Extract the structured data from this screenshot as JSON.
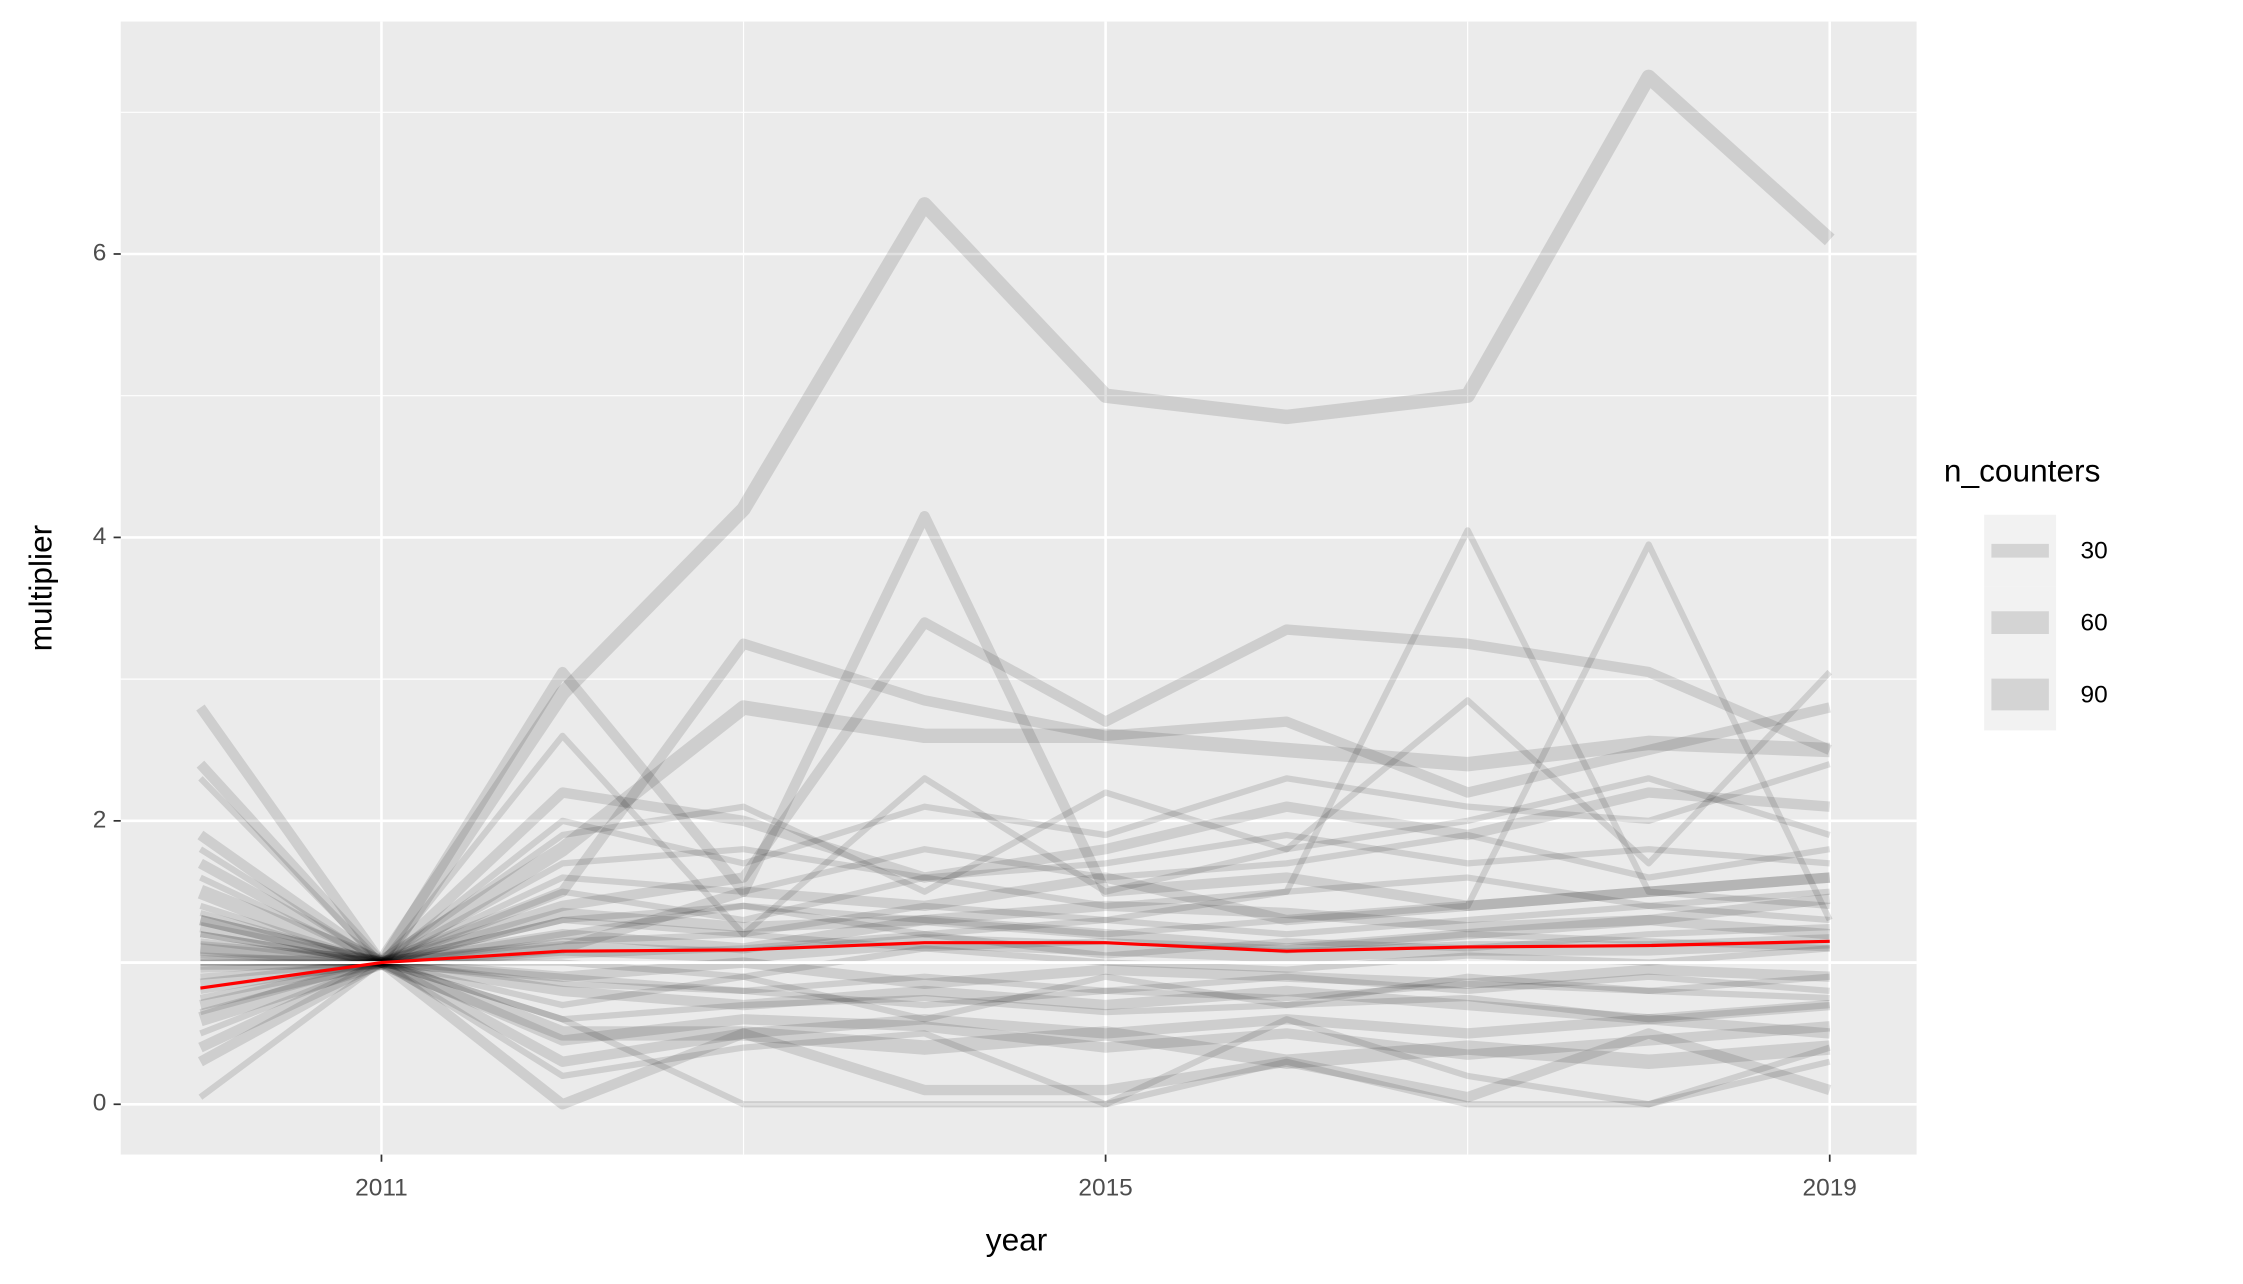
{
  "chart_data": {
    "type": "line",
    "x_label": "year",
    "y_label": "multiplier",
    "x": [
      2010,
      2011,
      2012,
      2013,
      2014,
      2015,
      2016,
      2017,
      2018,
      2019
    ],
    "xlim": [
      2009.56,
      2019.48
    ],
    "ylim": [
      -0.355,
      7.64
    ],
    "xticks": [
      2011,
      2015,
      2019
    ],
    "yticks": [
      0,
      2,
      4,
      6
    ],
    "xminor": [
      2013,
      2017
    ],
    "yminor": [
      1,
      3,
      5,
      7
    ],
    "grid": true,
    "line_color": "#000000",
    "line_alpha": 0.12,
    "series": [
      {
        "size": 90,
        "values": [
          1.1,
          1.0,
          2.9,
          4.2,
          6.35,
          5.0,
          4.85,
          5.0,
          7.25,
          6.1
        ]
      },
      {
        "size": 60,
        "values": [
          2.8,
          1.0,
          3.05,
          1.5,
          4.15,
          1.5,
          1.6,
          1.4,
          1.5,
          1.6
        ]
      },
      {
        "size": 60,
        "values": [
          1.3,
          1.0,
          1.4,
          1.6,
          3.4,
          2.7,
          3.35,
          3.25,
          3.05,
          2.5
        ]
      },
      {
        "size": 30,
        "values": [
          1.2,
          1.0,
          1.3,
          1.2,
          1.4,
          1.3,
          1.5,
          4.05,
          1.5,
          1.4
        ]
      },
      {
        "size": 30,
        "values": [
          1.0,
          1.0,
          1.2,
          1.4,
          1.3,
          1.2,
          1.3,
          1.4,
          3.95,
          1.3
        ]
      },
      {
        "size": 60,
        "values": [
          2.4,
          1.0,
          1.5,
          3.25,
          2.85,
          2.6,
          2.7,
          2.2,
          2.5,
          2.8
        ]
      },
      {
        "size": 90,
        "values": [
          1.5,
          1.0,
          1.8,
          2.8,
          2.6,
          2.6,
          2.5,
          2.4,
          2.55,
          2.5
        ]
      },
      {
        "size": 30,
        "values": [
          2.3,
          1.0,
          2.6,
          1.2,
          2.3,
          1.5,
          1.8,
          2.85,
          1.7,
          3.05
        ]
      },
      {
        "size": 60,
        "values": [
          1.9,
          1.0,
          0.0,
          0.5,
          0.6,
          0.5,
          0.6,
          0.5,
          0.6,
          0.5
        ]
      },
      {
        "size": 30,
        "values": [
          0.05,
          1.0,
          0.6,
          0.0,
          0.0,
          0.0,
          0.3,
          0.0,
          0.0,
          0.3
        ]
      },
      {
        "size": 60,
        "values": [
          0.3,
          1.0,
          0.3,
          0.5,
          0.1,
          0.1,
          0.3,
          0.05,
          0.5,
          0.1
        ]
      },
      {
        "size": 30,
        "values": [
          0.5,
          1.0,
          0.2,
          0.4,
          0.5,
          0.0,
          0.6,
          0.2,
          0.0,
          0.4
        ]
      },
      {
        "size": 60,
        "values": [
          1.7,
          1.0,
          2.2,
          2.0,
          1.6,
          1.8,
          2.1,
          1.9,
          2.2,
          2.1
        ]
      },
      {
        "size": 30,
        "values": [
          1.6,
          1.0,
          1.9,
          2.1,
          1.5,
          2.2,
          1.8,
          2.0,
          2.3,
          1.9
        ]
      },
      {
        "size": 90,
        "values": [
          0.6,
          1.0,
          0.5,
          0.5,
          0.4,
          0.5,
          0.3,
          0.4,
          0.3,
          0.4
        ]
      },
      {
        "size": 60,
        "values": [
          0.7,
          1.0,
          0.8,
          0.7,
          0.8,
          0.7,
          0.8,
          0.7,
          0.6,
          0.7
        ]
      },
      {
        "size": 30,
        "values": [
          0.8,
          1.0,
          0.9,
          0.8,
          0.9,
          0.8,
          0.9,
          0.8,
          0.9,
          0.8
        ]
      },
      {
        "size": 30,
        "values": [
          0.9,
          1.0,
          0.7,
          0.9,
          0.6,
          0.9,
          0.7,
          0.9,
          0.8,
          0.9
        ]
      },
      {
        "size": 60,
        "values": [
          1.1,
          1.0,
          1.2,
          1.1,
          1.3,
          1.2,
          1.1,
          1.2,
          1.3,
          1.2
        ]
      },
      {
        "size": 30,
        "values": [
          1.2,
          1.0,
          1.3,
          1.4,
          1.2,
          1.3,
          1.2,
          1.3,
          1.4,
          1.3
        ]
      },
      {
        "size": 30,
        "values": [
          1.4,
          1.0,
          1.5,
          1.3,
          1.6,
          1.4,
          1.5,
          1.6,
          1.4,
          1.5
        ]
      },
      {
        "size": 60,
        "values": [
          1.3,
          1.0,
          1.1,
          1.5,
          1.4,
          1.6,
          1.3,
          1.4,
          1.5,
          1.6
        ]
      },
      {
        "size": 30,
        "values": [
          0.95,
          1.0,
          1.0,
          0.9,
          1.1,
          1.0,
          0.95,
          1.05,
          1.0,
          1.1
        ]
      },
      {
        "size": 30,
        "values": [
          1.05,
          1.0,
          1.15,
          1.2,
          1.1,
          1.15,
          1.1,
          1.2,
          1.15,
          1.1
        ]
      },
      {
        "size": 60,
        "values": [
          0.85,
          1.0,
          0.9,
          1.0,
          0.85,
          0.95,
          0.9,
          0.85,
          0.95,
          0.9
        ]
      },
      {
        "size": 30,
        "values": [
          0.75,
          1.0,
          0.6,
          0.7,
          0.75,
          0.65,
          0.7,
          0.75,
          0.6,
          0.7
        ]
      },
      {
        "size": 30,
        "values": [
          1.0,
          1.0,
          1.7,
          1.8,
          1.6,
          1.7,
          1.9,
          1.7,
          1.8,
          1.7
        ]
      },
      {
        "size": 60,
        "values": [
          1.25,
          1.0,
          1.35,
          1.25,
          1.3,
          1.4,
          1.35,
          1.25,
          1.3,
          1.45
        ]
      },
      {
        "size": 30,
        "values": [
          0.65,
          1.0,
          0.85,
          0.8,
          0.7,
          0.8,
          0.75,
          0.85,
          0.8,
          0.75
        ]
      },
      {
        "size": 30,
        "values": [
          1.15,
          1.0,
          1.05,
          1.1,
          1.2,
          1.05,
          1.15,
          1.1,
          1.2,
          1.25
        ]
      },
      {
        "size": 90,
        "values": [
          1.0,
          1.0,
          1.1,
          1.05,
          1.15,
          1.1,
          1.05,
          1.1,
          1.1,
          1.15
        ]
      },
      {
        "size": 60,
        "values": [
          0.4,
          1.0,
          0.45,
          0.6,
          0.55,
          0.4,
          0.5,
          0.35,
          0.45,
          0.55
        ]
      },
      {
        "size": 30,
        "values": [
          1.8,
          1.0,
          2.0,
          1.7,
          2.1,
          1.9,
          2.3,
          2.1,
          2.0,
          2.4
        ]
      },
      {
        "size": 30,
        "values": [
          1.35,
          1.0,
          1.6,
          1.5,
          1.8,
          1.6,
          1.7,
          1.9,
          1.6,
          1.8
        ]
      }
    ],
    "hline": {
      "value": 1,
      "color": "#ffffff"
    },
    "mean_line": {
      "color": "#ff0000",
      "values": [
        0.82,
        1.0,
        1.08,
        1.09,
        1.14,
        1.14,
        1.08,
        1.11,
        1.12,
        1.15
      ]
    },
    "size_legend": {
      "title": "n_counters",
      "values": [
        30,
        60,
        90
      ]
    }
  }
}
